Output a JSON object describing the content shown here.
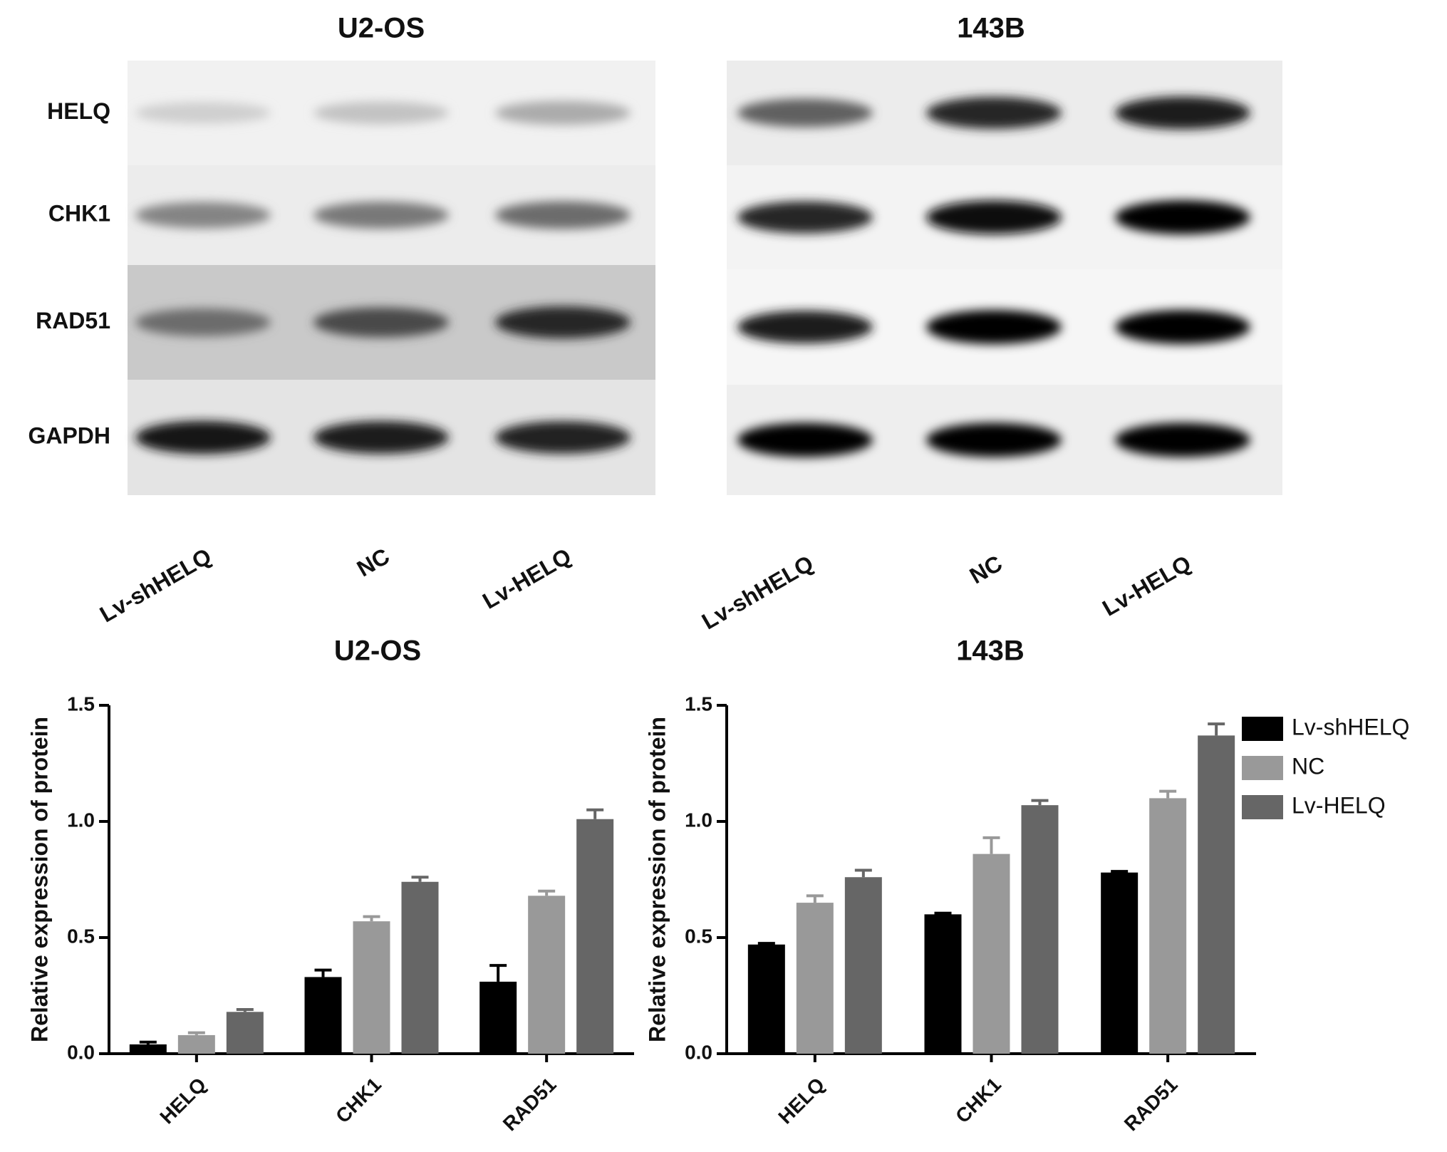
{
  "blots": [
    {
      "title": "U2-OS",
      "rows": [
        "HELQ",
        "CHK1",
        "RAD51",
        "GAPDH"
      ],
      "lanes": [
        "Lv-shHELQ",
        "NC",
        "Lv-HELQ"
      ]
    },
    {
      "title": "143B",
      "lanes": [
        "Lv-shHELQ",
        "NC",
        "Lv-HELQ"
      ]
    }
  ],
  "chart_data": [
    {
      "type": "bar",
      "title": "U2-OS",
      "y_label": "Relative expression of protein",
      "categories": [
        "HELQ",
        "CHK1",
        "RAD51"
      ],
      "series": [
        {
          "name": "Lv-shHELQ",
          "color": "#000000",
          "values": [
            0.04,
            0.33,
            0.31
          ],
          "errors": [
            0.01,
            0.03,
            0.07
          ]
        },
        {
          "name": "NC",
          "color": "#999999",
          "values": [
            0.08,
            0.57,
            0.68
          ],
          "errors": [
            0.01,
            0.02,
            0.02
          ]
        },
        {
          "name": "Lv-HELQ",
          "color": "#666666",
          "values": [
            0.18,
            0.74,
            1.01
          ],
          "errors": [
            0.01,
            0.02,
            0.04
          ]
        }
      ],
      "ylim": [
        0,
        1.5
      ],
      "yticks": [
        {
          "value": 0,
          "label": "0.0"
        },
        0.5,
        {
          "value": 1,
          "label": "1.0"
        },
        1.5
      ],
      "legend": false
    },
    {
      "type": "bar",
      "title": "143B",
      "y_label": "Relative expression of protein",
      "categories": [
        "HELQ",
        "CHK1",
        "RAD51"
      ],
      "series": [
        {
          "name": "Lv-shHELQ",
          "color": "#000000",
          "values": [
            0.47,
            0.6,
            0.78
          ],
          "errors": [
            0.005,
            0.005,
            0.005
          ]
        },
        {
          "name": "NC",
          "color": "#999999",
          "values": [
            0.65,
            0.86,
            1.1
          ],
          "errors": [
            0.03,
            0.07,
            0.03
          ]
        },
        {
          "name": "Lv-HELQ",
          "color": "#666666",
          "values": [
            0.76,
            1.07,
            1.37
          ],
          "errors": [
            0.03,
            0.02,
            0.05
          ]
        }
      ],
      "ylim": [
        0,
        1.5
      ],
      "yticks": [
        {
          "value": 0,
          "label": "0.0"
        },
        0.5,
        {
          "value": 1,
          "label": "1.0"
        },
        1.5
      ],
      "legend": "right"
    }
  ]
}
